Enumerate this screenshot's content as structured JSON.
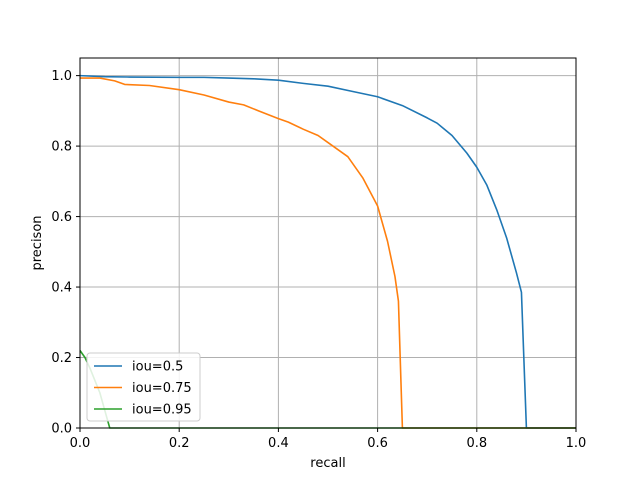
{
  "chart_data": {
    "type": "line",
    "xlabel": "recall",
    "ylabel": "precison",
    "xlim": [
      0,
      1
    ],
    "ylim": [
      0,
      1.05
    ],
    "xticks": [
      0.0,
      0.2,
      0.4,
      0.6,
      0.8,
      1.0
    ],
    "yticks": [
      0.0,
      0.2,
      0.4,
      0.6,
      0.8,
      1.0
    ],
    "xtick_labels": [
      "0.0",
      "0.2",
      "0.4",
      "0.6",
      "0.8",
      "1.0"
    ],
    "ytick_labels": [
      "0.0",
      "0.2",
      "0.4",
      "0.6",
      "0.8",
      "1.0"
    ],
    "grid": true,
    "legend_position": "lower-left",
    "series": [
      {
        "name": "iou=0.5",
        "color": "#1f77b4",
        "points": [
          [
            0.0,
            1.0
          ],
          [
            0.05,
            0.997
          ],
          [
            0.1,
            0.996
          ],
          [
            0.2,
            0.995
          ],
          [
            0.25,
            0.995
          ],
          [
            0.3,
            0.993
          ],
          [
            0.35,
            0.991
          ],
          [
            0.4,
            0.987
          ],
          [
            0.45,
            0.978
          ],
          [
            0.5,
            0.97
          ],
          [
            0.55,
            0.955
          ],
          [
            0.6,
            0.94
          ],
          [
            0.65,
            0.915
          ],
          [
            0.7,
            0.88
          ],
          [
            0.72,
            0.865
          ],
          [
            0.75,
            0.83
          ],
          [
            0.78,
            0.78
          ],
          [
            0.8,
            0.74
          ],
          [
            0.82,
            0.69
          ],
          [
            0.84,
            0.62
          ],
          [
            0.86,
            0.54
          ],
          [
            0.88,
            0.44
          ],
          [
            0.89,
            0.385
          ],
          [
            0.9,
            0.0
          ],
          [
            1.0,
            0.0
          ]
        ]
      },
      {
        "name": "iou=0.75",
        "color": "#ff7f0e",
        "points": [
          [
            0.0,
            0.993
          ],
          [
            0.04,
            0.993
          ],
          [
            0.07,
            0.985
          ],
          [
            0.09,
            0.975
          ],
          [
            0.14,
            0.972
          ],
          [
            0.2,
            0.96
          ],
          [
            0.25,
            0.945
          ],
          [
            0.3,
            0.925
          ],
          [
            0.33,
            0.917
          ],
          [
            0.36,
            0.9
          ],
          [
            0.4,
            0.878
          ],
          [
            0.42,
            0.868
          ],
          [
            0.45,
            0.848
          ],
          [
            0.48,
            0.83
          ],
          [
            0.5,
            0.81
          ],
          [
            0.54,
            0.77
          ],
          [
            0.57,
            0.71
          ],
          [
            0.6,
            0.63
          ],
          [
            0.62,
            0.53
          ],
          [
            0.635,
            0.43
          ],
          [
            0.642,
            0.36
          ],
          [
            0.65,
            0.0
          ],
          [
            1.0,
            0.0
          ]
        ]
      },
      {
        "name": "iou=0.95",
        "color": "#2ca02c",
        "points": [
          [
            0.0,
            0.22
          ],
          [
            0.01,
            0.2
          ],
          [
            0.02,
            0.17
          ],
          [
            0.04,
            0.1
          ],
          [
            0.06,
            0.0
          ],
          [
            1.0,
            0.0
          ]
        ]
      }
    ]
  }
}
